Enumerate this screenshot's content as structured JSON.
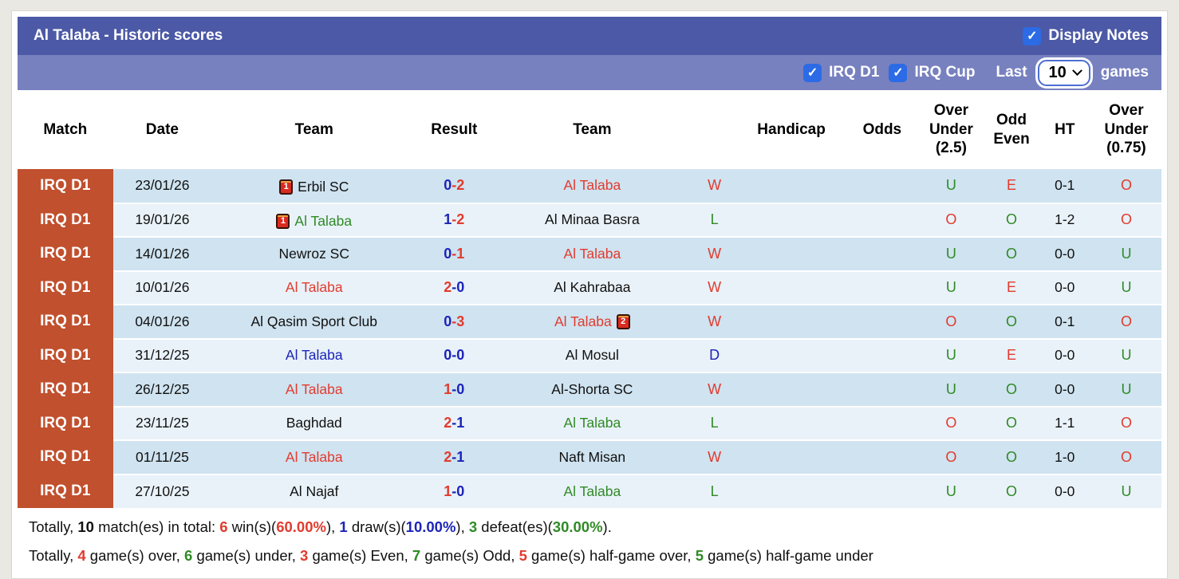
{
  "colors": {
    "red": "#e23b2e",
    "green": "#2f8a25",
    "blue": "#1d24b8",
    "black": "#111111"
  },
  "header": {
    "title": "Al Talaba - Historic scores",
    "display_notes_label": "Display Notes",
    "display_notes_checked": "✓"
  },
  "filters": {
    "irq_d1_label": "IRQ D1",
    "irq_d1_checked": "✓",
    "irq_cup_label": "IRQ Cup",
    "irq_cup_checked": "✓",
    "last_label": "Last",
    "games_count": "10",
    "games_label": "games"
  },
  "table": {
    "columns": [
      "Match",
      "Date",
      "Team",
      "Result",
      "Team",
      "",
      "Handicap",
      "Odds",
      "Over\nUnder\n(2.5)",
      "Odd\nEven",
      "HT",
      "Over\nUnder\n(0.75)"
    ],
    "rows": [
      {
        "league": "IRQ D1",
        "date": "23/01/26",
        "home": {
          "name": "Erbil SC",
          "color": "black",
          "card": "1",
          "card_pos": "before"
        },
        "score": {
          "home": "0",
          "away": "2",
          "home_color": "blue",
          "away_color": "red"
        },
        "away": {
          "name": "Al Talaba",
          "color": "red"
        },
        "outcome": {
          "text": "W",
          "color": "red"
        },
        "handicap": "",
        "odds": "",
        "ou25": {
          "text": "U",
          "color": "green"
        },
        "odd_even": {
          "text": "E",
          "color": "red"
        },
        "ht": "0-1",
        "ou075": {
          "text": "O",
          "color": "red"
        }
      },
      {
        "league": "IRQ D1",
        "date": "19/01/26",
        "home": {
          "name": "Al Talaba",
          "color": "green",
          "card": "1",
          "card_pos": "before"
        },
        "score": {
          "home": "1",
          "away": "2",
          "home_color": "blue",
          "away_color": "red"
        },
        "away": {
          "name": "Al Minaa Basra",
          "color": "black"
        },
        "outcome": {
          "text": "L",
          "color": "green"
        },
        "handicap": "",
        "odds": "",
        "ou25": {
          "text": "O",
          "color": "red"
        },
        "odd_even": {
          "text": "O",
          "color": "green"
        },
        "ht": "1-2",
        "ou075": {
          "text": "O",
          "color": "red"
        }
      },
      {
        "league": "IRQ D1",
        "date": "14/01/26",
        "home": {
          "name": "Newroz SC",
          "color": "black"
        },
        "score": {
          "home": "0",
          "away": "1",
          "home_color": "blue",
          "away_color": "red"
        },
        "away": {
          "name": "Al Talaba",
          "color": "red"
        },
        "outcome": {
          "text": "W",
          "color": "red"
        },
        "handicap": "",
        "odds": "",
        "ou25": {
          "text": "U",
          "color": "green"
        },
        "odd_even": {
          "text": "O",
          "color": "green"
        },
        "ht": "0-0",
        "ou075": {
          "text": "U",
          "color": "green"
        }
      },
      {
        "league": "IRQ D1",
        "date": "10/01/26",
        "home": {
          "name": "Al Talaba",
          "color": "red"
        },
        "score": {
          "home": "2",
          "away": "0",
          "home_color": "red",
          "away_color": "blue"
        },
        "away": {
          "name": "Al Kahrabaa",
          "color": "black"
        },
        "outcome": {
          "text": "W",
          "color": "red"
        },
        "handicap": "",
        "odds": "",
        "ou25": {
          "text": "U",
          "color": "green"
        },
        "odd_even": {
          "text": "E",
          "color": "red"
        },
        "ht": "0-0",
        "ou075": {
          "text": "U",
          "color": "green"
        }
      },
      {
        "league": "IRQ D1",
        "date": "04/01/26",
        "home": {
          "name": "Al Qasim Sport Club",
          "color": "black"
        },
        "score": {
          "home": "0",
          "away": "3",
          "home_color": "blue",
          "away_color": "red"
        },
        "away": {
          "name": "Al Talaba",
          "color": "red",
          "card": "2",
          "card_pos": "after"
        },
        "outcome": {
          "text": "W",
          "color": "red"
        },
        "handicap": "",
        "odds": "",
        "ou25": {
          "text": "O",
          "color": "red"
        },
        "odd_even": {
          "text": "O",
          "color": "green"
        },
        "ht": "0-1",
        "ou075": {
          "text": "O",
          "color": "red"
        }
      },
      {
        "league": "IRQ D1",
        "date": "31/12/25",
        "home": {
          "name": "Al Talaba",
          "color": "blue"
        },
        "score": {
          "home": "0",
          "away": "0",
          "home_color": "blue",
          "away_color": "blue"
        },
        "away": {
          "name": "Al Mosul",
          "color": "black"
        },
        "outcome": {
          "text": "D",
          "color": "blue"
        },
        "handicap": "",
        "odds": "",
        "ou25": {
          "text": "U",
          "color": "green"
        },
        "odd_even": {
          "text": "E",
          "color": "red"
        },
        "ht": "0-0",
        "ou075": {
          "text": "U",
          "color": "green"
        }
      },
      {
        "league": "IRQ D1",
        "date": "26/12/25",
        "home": {
          "name": "Al Talaba",
          "color": "red"
        },
        "score": {
          "home": "1",
          "away": "0",
          "home_color": "red",
          "away_color": "blue"
        },
        "away": {
          "name": "Al-Shorta SC",
          "color": "black"
        },
        "outcome": {
          "text": "W",
          "color": "red"
        },
        "handicap": "",
        "odds": "",
        "ou25": {
          "text": "U",
          "color": "green"
        },
        "odd_even": {
          "text": "O",
          "color": "green"
        },
        "ht": "0-0",
        "ou075": {
          "text": "U",
          "color": "green"
        }
      },
      {
        "league": "IRQ D1",
        "date": "23/11/25",
        "home": {
          "name": "Baghdad",
          "color": "black"
        },
        "score": {
          "home": "2",
          "away": "1",
          "home_color": "red",
          "away_color": "blue"
        },
        "away": {
          "name": "Al Talaba",
          "color": "green"
        },
        "outcome": {
          "text": "L",
          "color": "green"
        },
        "handicap": "",
        "odds": "",
        "ou25": {
          "text": "O",
          "color": "red"
        },
        "odd_even": {
          "text": "O",
          "color": "green"
        },
        "ht": "1-1",
        "ou075": {
          "text": "O",
          "color": "red"
        }
      },
      {
        "league": "IRQ D1",
        "date": "01/11/25",
        "home": {
          "name": "Al Talaba",
          "color": "red"
        },
        "score": {
          "home": "2",
          "away": "1",
          "home_color": "red",
          "away_color": "blue"
        },
        "away": {
          "name": "Naft Misan",
          "color": "black"
        },
        "outcome": {
          "text": "W",
          "color": "red"
        },
        "handicap": "",
        "odds": "",
        "ou25": {
          "text": "O",
          "color": "red"
        },
        "odd_even": {
          "text": "O",
          "color": "green"
        },
        "ht": "1-0",
        "ou075": {
          "text": "O",
          "color": "red"
        }
      },
      {
        "league": "IRQ D1",
        "date": "27/10/25",
        "home": {
          "name": "Al Najaf",
          "color": "black"
        },
        "score": {
          "home": "1",
          "away": "0",
          "home_color": "red",
          "away_color": "blue"
        },
        "away": {
          "name": "Al Talaba",
          "color": "green"
        },
        "outcome": {
          "text": "L",
          "color": "green"
        },
        "handicap": "",
        "odds": "",
        "ou25": {
          "text": "U",
          "color": "green"
        },
        "odd_even": {
          "text": "O",
          "color": "green"
        },
        "ht": "0-0",
        "ou075": {
          "text": "U",
          "color": "green"
        }
      }
    ]
  },
  "footer": {
    "line1": [
      {
        "t": "Totally, ",
        "c": "black",
        "b": false
      },
      {
        "t": "10",
        "c": "black",
        "b": true
      },
      {
        "t": " match(es) in total: ",
        "c": "black",
        "b": false
      },
      {
        "t": "6",
        "c": "red",
        "b": true
      },
      {
        "t": " win(s)(",
        "c": "black",
        "b": false
      },
      {
        "t": "60.00%",
        "c": "red",
        "b": true
      },
      {
        "t": "), ",
        "c": "black",
        "b": false
      },
      {
        "t": "1",
        "c": "blue",
        "b": true
      },
      {
        "t": " draw(s)(",
        "c": "black",
        "b": false
      },
      {
        "t": "10.00%",
        "c": "blue",
        "b": true
      },
      {
        "t": "), ",
        "c": "black",
        "b": false
      },
      {
        "t": "3",
        "c": "green",
        "b": true
      },
      {
        "t": " defeat(es)(",
        "c": "black",
        "b": false
      },
      {
        "t": "30.00%",
        "c": "green",
        "b": true
      },
      {
        "t": ").",
        "c": "black",
        "b": false
      }
    ],
    "line2": [
      {
        "t": "Totally, ",
        "c": "black",
        "b": false
      },
      {
        "t": "4",
        "c": "red",
        "b": true
      },
      {
        "t": " game(s) over, ",
        "c": "black",
        "b": false
      },
      {
        "t": "6",
        "c": "green",
        "b": true
      },
      {
        "t": " game(s) under, ",
        "c": "black",
        "b": false
      },
      {
        "t": "3",
        "c": "red",
        "b": true
      },
      {
        "t": " game(s) Even, ",
        "c": "black",
        "b": false
      },
      {
        "t": "7",
        "c": "green",
        "b": true
      },
      {
        "t": " game(s) Odd, ",
        "c": "black",
        "b": false
      },
      {
        "t": "5",
        "c": "red",
        "b": true
      },
      {
        "t": " game(s) half-game over, ",
        "c": "black",
        "b": false
      },
      {
        "t": "5",
        "c": "green",
        "b": true
      },
      {
        "t": " game(s) half-game under",
        "c": "black",
        "b": false
      }
    ]
  }
}
